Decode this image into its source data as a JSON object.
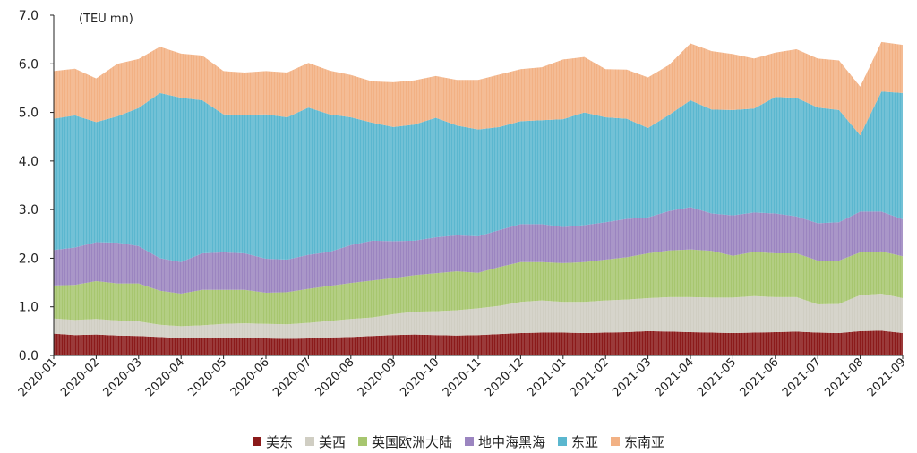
{
  "chart_data": {
    "type": "area",
    "unit_label": "(TEU mn)",
    "ylim": [
      0,
      7.0
    ],
    "y_ticks": [
      "0.0",
      "1.0",
      "2.0",
      "3.0",
      "4.0",
      "5.0",
      "6.0",
      "7.0"
    ],
    "x_tick_labels": [
      "2020-01",
      "2020-02",
      "2020-03",
      "2020-04",
      "2020-05",
      "2020-06",
      "2020-07",
      "2020-08",
      "2020-09",
      "2020-10",
      "2020-11",
      "2020-12",
      "2021-01",
      "2021-02",
      "2021-03",
      "2021-04",
      "2021-05",
      "2021-06",
      "2021-07",
      "2021-08",
      "2021-09"
    ],
    "stacked": true,
    "grid": false,
    "legend_position": "bottom",
    "x": [
      "2020-01",
      "2020-01-15",
      "2020-02",
      "2020-02-15",
      "2020-03",
      "2020-03-15",
      "2020-04",
      "2020-04-15",
      "2020-05",
      "2020-05-15",
      "2020-06",
      "2020-06-15",
      "2020-07",
      "2020-07-15",
      "2020-08",
      "2020-08-15",
      "2020-09",
      "2020-09-15",
      "2020-10",
      "2020-10-15",
      "2020-11",
      "2020-11-15",
      "2020-12",
      "2020-12-15",
      "2021-01",
      "2021-01-15",
      "2021-02",
      "2021-02-15",
      "2021-03",
      "2021-03-15",
      "2021-04",
      "2021-04-15",
      "2021-05",
      "2021-05-15",
      "2021-06",
      "2021-06-15",
      "2021-07",
      "2021-07-15",
      "2021-08",
      "2021-08-15",
      "2021-09"
    ],
    "series": [
      {
        "name": "美东",
        "color": "#8B1A1A",
        "values": [
          0.45,
          0.42,
          0.43,
          0.41,
          0.4,
          0.38,
          0.36,
          0.35,
          0.37,
          0.36,
          0.35,
          0.34,
          0.35,
          0.37,
          0.38,
          0.4,
          0.42,
          0.43,
          0.42,
          0.41,
          0.42,
          0.44,
          0.46,
          0.47,
          0.47,
          0.46,
          0.47,
          0.48,
          0.5,
          0.49,
          0.48,
          0.47,
          0.46,
          0.47,
          0.48,
          0.49,
          0.47,
          0.46,
          0.5,
          0.51,
          0.46
        ]
      },
      {
        "name": "美西",
        "color": "#D0CEC3",
        "values": [
          0.31,
          0.31,
          0.32,
          0.31,
          0.3,
          0.25,
          0.24,
          0.27,
          0.28,
          0.3,
          0.3,
          0.3,
          0.32,
          0.34,
          0.37,
          0.38,
          0.43,
          0.47,
          0.49,
          0.52,
          0.55,
          0.58,
          0.64,
          0.66,
          0.63,
          0.64,
          0.66,
          0.67,
          0.68,
          0.71,
          0.72,
          0.72,
          0.73,
          0.75,
          0.72,
          0.71,
          0.58,
          0.6,
          0.74,
          0.76,
          0.72
        ]
      },
      {
        "name": "英国欧洲大陆",
        "color": "#A7C66F",
        "values": [
          0.68,
          0.72,
          0.78,
          0.76,
          0.78,
          0.7,
          0.67,
          0.73,
          0.7,
          0.69,
          0.64,
          0.66,
          0.7,
          0.72,
          0.74,
          0.76,
          0.74,
          0.75,
          0.78,
          0.8,
          0.73,
          0.8,
          0.82,
          0.79,
          0.8,
          0.82,
          0.84,
          0.87,
          0.92,
          0.96,
          0.98,
          0.96,
          0.86,
          0.91,
          0.9,
          0.9,
          0.9,
          0.89,
          0.88,
          0.87,
          0.86
        ]
      },
      {
        "name": "地中海黑海",
        "color": "#9B85C0",
        "values": [
          0.73,
          0.77,
          0.8,
          0.84,
          0.77,
          0.67,
          0.65,
          0.75,
          0.77,
          0.75,
          0.7,
          0.67,
          0.7,
          0.7,
          0.78,
          0.82,
          0.76,
          0.71,
          0.74,
          0.74,
          0.75,
          0.76,
          0.78,
          0.78,
          0.74,
          0.76,
          0.77,
          0.79,
          0.74,
          0.81,
          0.87,
          0.77,
          0.83,
          0.81,
          0.82,
          0.76,
          0.77,
          0.79,
          0.84,
          0.82,
          0.76
        ]
      },
      {
        "name": "东亚",
        "color": "#5BB7CF",
        "values": [
          2.7,
          2.72,
          2.47,
          2.6,
          2.84,
          3.4,
          3.38,
          3.15,
          2.84,
          2.85,
          2.97,
          2.93,
          3.03,
          2.83,
          2.63,
          2.43,
          2.35,
          2.39,
          2.46,
          2.26,
          2.2,
          2.12,
          2.12,
          2.14,
          2.22,
          2.32,
          2.16,
          2.06,
          1.84,
          1.98,
          2.2,
          2.14,
          2.17,
          2.14,
          2.4,
          2.44,
          2.38,
          2.31,
          1.57,
          2.47,
          2.6
        ]
      },
      {
        "name": "东南亚",
        "color": "#F2B184",
        "values": [
          0.98,
          0.96,
          0.9,
          1.08,
          1.01,
          0.95,
          0.91,
          0.92,
          0.89,
          0.87,
          0.89,
          0.92,
          0.92,
          0.9,
          0.87,
          0.85,
          0.92,
          0.91,
          0.86,
          0.94,
          1.02,
          1.08,
          1.07,
          1.09,
          1.23,
          1.14,
          0.99,
          1.01,
          1.04,
          1.03,
          1.17,
          1.2,
          1.15,
          1.03,
          0.91,
          1.0,
          1.01,
          1.02,
          1.0,
          1.02,
          0.99
        ]
      }
    ]
  }
}
